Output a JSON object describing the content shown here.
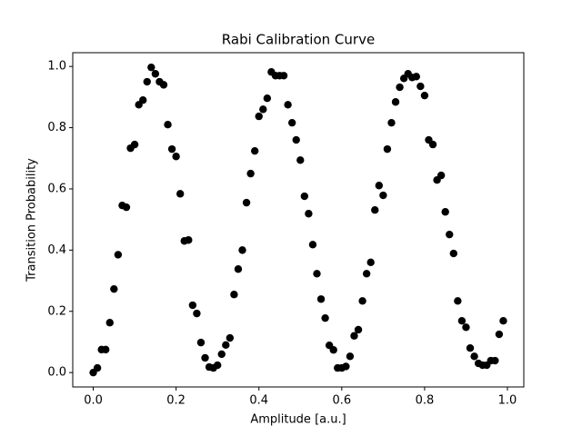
{
  "chart_data": {
    "type": "scatter",
    "title": "Rabi Calibration Curve",
    "x_label": "Amplitude [a.u.]",
    "y_label": "Transition Probability",
    "color": "#000000",
    "x": [
      0.0,
      0.01,
      0.02,
      0.03,
      0.04,
      0.05,
      0.06,
      0.07,
      0.08,
      0.09,
      0.1,
      0.11,
      0.12,
      0.13,
      0.14,
      0.15,
      0.16,
      0.17,
      0.18,
      0.19,
      0.2,
      0.21,
      0.22,
      0.23,
      0.24,
      0.25,
      0.26,
      0.27,
      0.28,
      0.29,
      0.3,
      0.31,
      0.32,
      0.33,
      0.34,
      0.35,
      0.36,
      0.37,
      0.38,
      0.39,
      0.4,
      0.41,
      0.42,
      0.43,
      0.44,
      0.45,
      0.46,
      0.47,
      0.48,
      0.49,
      0.5,
      0.51,
      0.52,
      0.53,
      0.54,
      0.55,
      0.56,
      0.57,
      0.58,
      0.59,
      0.6,
      0.61,
      0.62,
      0.63,
      0.64,
      0.65,
      0.66,
      0.67,
      0.68,
      0.69,
      0.7,
      0.71,
      0.72,
      0.73,
      0.74,
      0.75,
      0.76,
      0.77,
      0.78,
      0.79,
      0.8,
      0.81,
      0.82,
      0.83,
      0.84,
      0.85,
      0.86,
      0.87,
      0.88,
      0.89,
      0.9,
      0.91,
      0.92,
      0.93,
      0.94,
      0.95,
      0.96,
      0.97,
      0.98,
      0.99
    ],
    "values": [
      0,
      0.015,
      0.075,
      0.075,
      0.163,
      0.273,
      0.385,
      0.546,
      0.54,
      0.733,
      0.745,
      0.875,
      0.89,
      0.95,
      0.997,
      0.976,
      0.95,
      0.94,
      0.81,
      0.73,
      0.706,
      0.584,
      0.43,
      0.433,
      0.22,
      0.193,
      0.098,
      0.048,
      0.018,
      0.015,
      0.024,
      0.06,
      0.09,
      0.113,
      0.255,
      0.338,
      0.4,
      0.555,
      0.65,
      0.724,
      0.837,
      0.86,
      0.896,
      0.982,
      0.97,
      0.97,
      0.97,
      0.875,
      0.816,
      0.76,
      0.694,
      0.576,
      0.519,
      0.418,
      0.323,
      0.24,
      0.178,
      0.089,
      0.074,
      0.015,
      0.015,
      0.02,
      0.053,
      0.12,
      0.14,
      0.234,
      0.323,
      0.36,
      0.531,
      0.611,
      0.579,
      0.73,
      0.816,
      0.884,
      0.932,
      0.961,
      0.976,
      0.964,
      0.967,
      0.935,
      0.905,
      0.76,
      0.745,
      0.629,
      0.644,
      0.525,
      0.451,
      0.389,
      0.234,
      0.169,
      0.148,
      0.08,
      0.053,
      0.03,
      0.024,
      0.024,
      0.039,
      0.039,
      0.125,
      0.169
    ],
    "xlim": [
      -0.0495,
      1.0395
    ],
    "ylim": [
      -0.047,
      1.045
    ],
    "xticks": [
      {
        "value": 0,
        "label": "0.0"
      },
      0.2,
      0.4,
      0.6,
      0.8,
      {
        "value": 1,
        "label": "1.0"
      }
    ],
    "yticks": [
      {
        "value": 0,
        "label": "0.0"
      },
      0.2,
      0.4,
      0.6,
      0.8,
      {
        "value": 1,
        "label": "1.0"
      }
    ],
    "grid": false
  }
}
